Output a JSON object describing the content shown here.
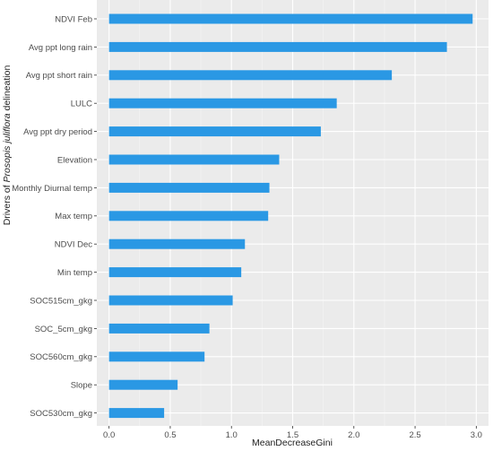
{
  "chart_data": {
    "type": "bar",
    "orientation": "horizontal",
    "xlabel": "MeanDecreaseGini",
    "ylabel": {
      "prefix": "Drivers of ",
      "italic": "Prosopis juliflora",
      "suffix": " delineation"
    },
    "xlim": [
      -0.1,
      3.1
    ],
    "xticks": [
      0.0,
      0.5,
      1.0,
      1.5,
      2.0,
      2.5,
      3.0
    ],
    "xtick_labels": [
      "0.0",
      "0.5",
      "1.0",
      "1.5",
      "2.0",
      "2.5",
      "3.0"
    ],
    "grid": true,
    "categories": [
      "NDVI Feb",
      "Avg ppt long rain",
      "Avg ppt short rain",
      "LULC",
      "Avg ppt dry period",
      "Elevation",
      "Monthly Diurnal temp",
      "Max temp",
      "NDVI Dec",
      "Min temp",
      "SOC515cm_gkg",
      "SOC_5cm_gkg",
      "SOC560cm_gkg",
      "Slope",
      "SOC530cm_gkg"
    ],
    "values": [
      2.97,
      2.76,
      2.31,
      1.86,
      1.73,
      1.39,
      1.31,
      1.3,
      1.11,
      1.08,
      1.01,
      0.82,
      0.78,
      0.56,
      0.45
    ]
  },
  "colors": {
    "bar": "#2a98e4",
    "panel": "#ebebeb",
    "grid_major": "#ffffff",
    "grid_minor": "#f5f5f5",
    "tick_text": "#4d4d4d"
  }
}
